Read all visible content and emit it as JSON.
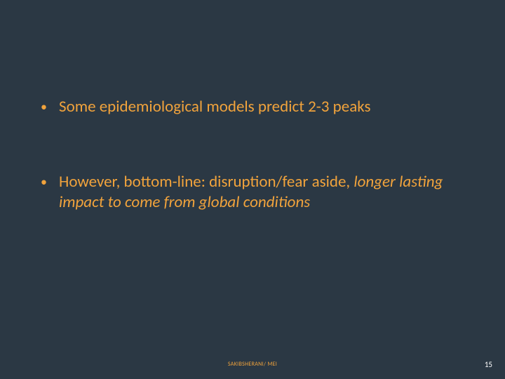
{
  "background_color": "#2b3844",
  "text_color": "#f1a33c",
  "page_number_color": "#ffffff",
  "font_family": "Calibri",
  "bullet_fontsize": 23,
  "footer_fontsize": 8,
  "pagenum_fontsize": 11,
  "bullets": [
    {
      "text": "Some epidemiological models predict 2-3 peaks",
      "italic_tail": ""
    },
    {
      "text": "However, bottom-line:  disruption/fear aside, ",
      "italic_tail": "longer lasting impact to come from global conditions"
    }
  ],
  "footer": "SAKIBSHERANI/ MEI",
  "page_number": "15"
}
